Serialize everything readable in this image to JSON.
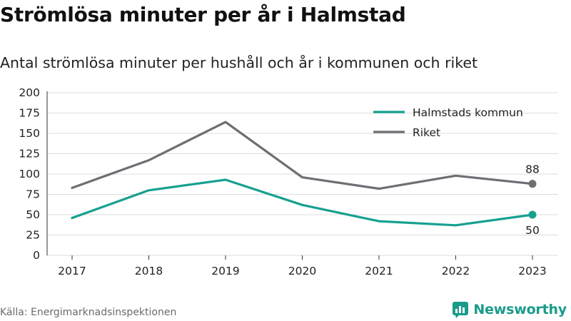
{
  "header": {
    "title": "Strömlösa minuter per år i Halmstad",
    "subtitle": "Antal strömlösa minuter per hushåll och år i kommunen och riket"
  },
  "footer": {
    "source": "Källa: Energimarknadsinspektionen",
    "brand": "Newsworthy",
    "brand_icon": "newsworthy-logo-icon"
  },
  "colors": {
    "halmstad": "#16a090",
    "riket": "#6e6e74",
    "grid": "#dcdcdc",
    "brand": "#1a9b8a"
  },
  "chart_data": {
    "type": "line",
    "x": [
      "2017",
      "2018",
      "2019",
      "2020",
      "2021",
      "2022",
      "2023"
    ],
    "yticks": [
      "0",
      "25",
      "50",
      "75",
      "100",
      "125",
      "150",
      "175",
      "200"
    ],
    "ylim": [
      0,
      200
    ],
    "grid": true,
    "legend_position": "top-right",
    "series": [
      {
        "name": "Halmstads kommun",
        "values": [
          46,
          80,
          93,
          62,
          42,
          37,
          50
        ],
        "end_label": "50"
      },
      {
        "name": "Riket",
        "values": [
          83,
          117,
          164,
          96,
          82,
          98,
          88
        ],
        "end_label": "88"
      }
    ]
  }
}
